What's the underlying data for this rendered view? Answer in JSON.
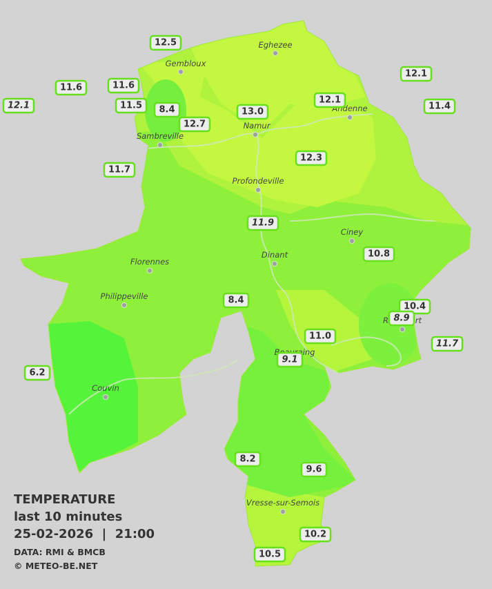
{
  "header": {
    "title": "TEMPERATURE",
    "subtitle": "last 10 minutes",
    "datetime": "25-02-2026  |  21:00",
    "source": "DATA: RMI & BMCB",
    "copyright": "© METEO-BE.NET"
  },
  "towns": [
    "Eghezee",
    "Gembloux",
    "Andenne",
    "Namur",
    "Sambreville",
    "Profondeville",
    "Ciney",
    "Dinant",
    "Florennes",
    "Philippeville",
    "Rochefort",
    "Beauraing",
    "Couvin",
    "Vresse-sur-Semois"
  ],
  "stations": [
    "12.5",
    "11.6",
    "11.6",
    "12.1",
    "11.5",
    "8.4",
    "12.7",
    "13.0",
    "12.1",
    "12.1",
    "11.4",
    "11.7",
    "12.3",
    "11.9",
    "10.8",
    "8.4",
    "10.4",
    "8.9",
    "11.0",
    "11.7",
    "9.1",
    "6.2",
    "8.2",
    "9.6",
    "10.2",
    "10.5"
  ]
}
